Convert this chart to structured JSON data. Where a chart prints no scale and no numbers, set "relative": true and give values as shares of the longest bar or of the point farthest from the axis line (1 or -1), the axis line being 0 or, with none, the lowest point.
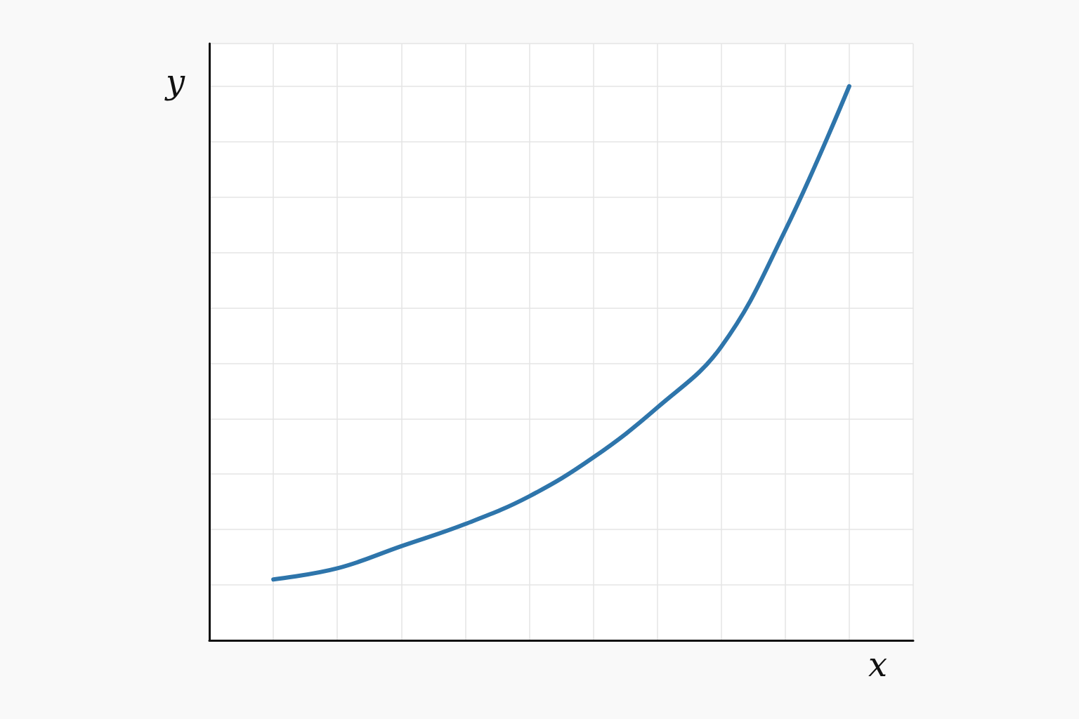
{
  "chart_data": {
    "type": "line",
    "xlabel": "x",
    "ylabel": "y",
    "relative": true,
    "grid": true,
    "marker": "none",
    "line_style": "solid",
    "categories": [
      null,
      null,
      null,
      null,
      null,
      null,
      null,
      null,
      null,
      null,
      null,
      null
    ],
    "series": [
      {
        "color": "#2e75ab",
        "values": [
          null,
          0.11,
          0.13,
          0.17,
          0.21,
          0.26,
          0.33,
          0.42,
          0.53,
          0.74,
          1,
          null
        ]
      }
    ]
  }
}
